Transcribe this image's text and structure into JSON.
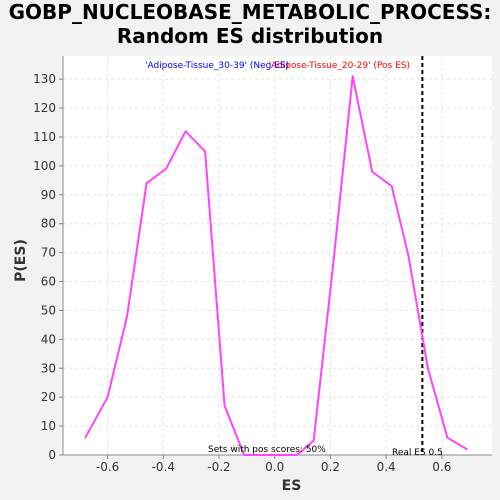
{
  "chart_data": {
    "type": "line",
    "title": "GOBP_NUCLEOBASE_METABOLIC_PROCESS:",
    "subtitle": "Random ES distribution",
    "xlabel": "ES",
    "ylabel": "P(ES)",
    "xlim": [
      -0.76,
      0.78
    ],
    "ylim": [
      0,
      138
    ],
    "xticks": [
      -0.6,
      -0.4,
      -0.2,
      0.0,
      0.2,
      0.4,
      0.6
    ],
    "xtick_labels": [
      "-0.6",
      "-0.4",
      "-0.2",
      "0.0",
      "0.2",
      "0.4",
      "0.6"
    ],
    "yticks": [
      0,
      10,
      20,
      30,
      40,
      50,
      60,
      70,
      80,
      90,
      100,
      110,
      120,
      130
    ],
    "grid": true,
    "series": [
      {
        "color": "#ff44ff",
        "x": [
          -0.68,
          -0.6,
          -0.53,
          -0.46,
          -0.39,
          -0.32,
          -0.25,
          -0.18,
          -0.11,
          -0.04,
          0.02,
          0.08,
          0.14,
          0.21,
          0.28,
          0.35,
          0.42,
          0.48,
          0.55,
          0.62,
          0.69
        ],
        "y": [
          6,
          20,
          48,
          94,
          99,
          112,
          105,
          17,
          0,
          0,
          0,
          0,
          5,
          66,
          131,
          98,
          93,
          69,
          30,
          6,
          2
        ]
      }
    ],
    "real_es": {
      "value": 0.53,
      "label": "Real ES 0.5",
      "color": "#000000"
    },
    "legend": {
      "placement": "top-center",
      "neg": {
        "text": "'Adipose-Tissue_30-39' (Neg ES)",
        "color": "#0000ff"
      },
      "pos": {
        "text": "'Adipose-Tissue_20-29' (Pos ES)",
        "color": "#ff0000"
      }
    },
    "annotation": "Sets with pos scores: 50%"
  }
}
